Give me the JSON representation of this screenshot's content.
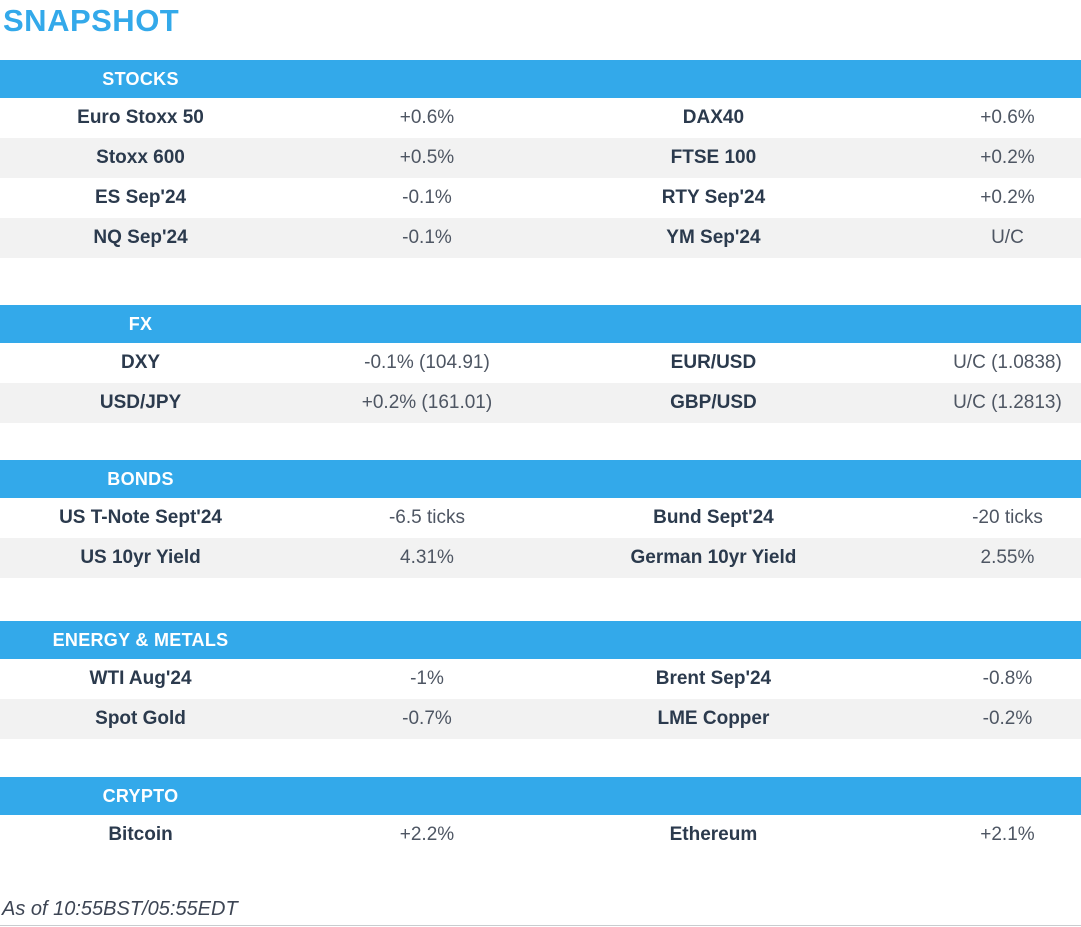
{
  "page_title": "SNAPSHOT",
  "colors": {
    "accent_blue": "#33a9ea",
    "header_text": "#ffffff",
    "row_alt_bg": "#f2f2f2",
    "label_text": "#2b3a4d",
    "value_text": "#4e5663"
  },
  "sections": [
    {
      "title": "STOCKS",
      "rows": [
        {
          "left": {
            "name": "Euro Stoxx 50",
            "value": "+0.6%"
          },
          "right": {
            "name": "DAX40",
            "value": "+0.6%"
          }
        },
        {
          "left": {
            "name": "Stoxx 600",
            "value": "+0.5%"
          },
          "right": {
            "name": "FTSE 100",
            "value": "+0.2%"
          }
        },
        {
          "left": {
            "name": "ES Sep'24",
            "value": "-0.1%"
          },
          "right": {
            "name": "RTY Sep'24",
            "value": "+0.2%"
          }
        },
        {
          "left": {
            "name": "NQ Sep'24",
            "value": "-0.1%"
          },
          "right": {
            "name": "YM Sep'24",
            "value": "U/C"
          }
        }
      ]
    },
    {
      "title": "FX",
      "rows": [
        {
          "left": {
            "name": "DXY",
            "value": "-0.1% (104.91)"
          },
          "right": {
            "name": "EUR/USD",
            "value": "U/C (1.0838)"
          }
        },
        {
          "left": {
            "name": "USD/JPY",
            "value": "+0.2% (161.01)"
          },
          "right": {
            "name": "GBP/USD",
            "value": "U/C (1.2813)"
          }
        }
      ]
    },
    {
      "title": "BONDS",
      "rows": [
        {
          "left": {
            "name": "US T-Note Sept'24",
            "value": "-6.5 ticks"
          },
          "right": {
            "name": "Bund Sept'24",
            "value": "-20 ticks"
          }
        },
        {
          "left": {
            "name": "US 10yr Yield",
            "value": "4.31%"
          },
          "right": {
            "name": "German 10yr Yield",
            "value": "2.55%"
          }
        }
      ]
    },
    {
      "title": "ENERGY & METALS",
      "rows": [
        {
          "left": {
            "name": "WTI Aug'24",
            "value": "-1%"
          },
          "right": {
            "name": "Brent Sep'24",
            "value": "-0.8%"
          }
        },
        {
          "left": {
            "name": "Spot Gold",
            "value": "-0.7%"
          },
          "right": {
            "name": "LME Copper",
            "value": "-0.2%"
          }
        }
      ]
    },
    {
      "title": "CRYPTO",
      "rows": [
        {
          "left": {
            "name": "Bitcoin",
            "value": "+2.2%"
          },
          "right": {
            "name": "Ethereum",
            "value": "+2.1%"
          }
        }
      ]
    }
  ],
  "footer": {
    "as_of": "As of 10:55BST/05:55EDT"
  }
}
